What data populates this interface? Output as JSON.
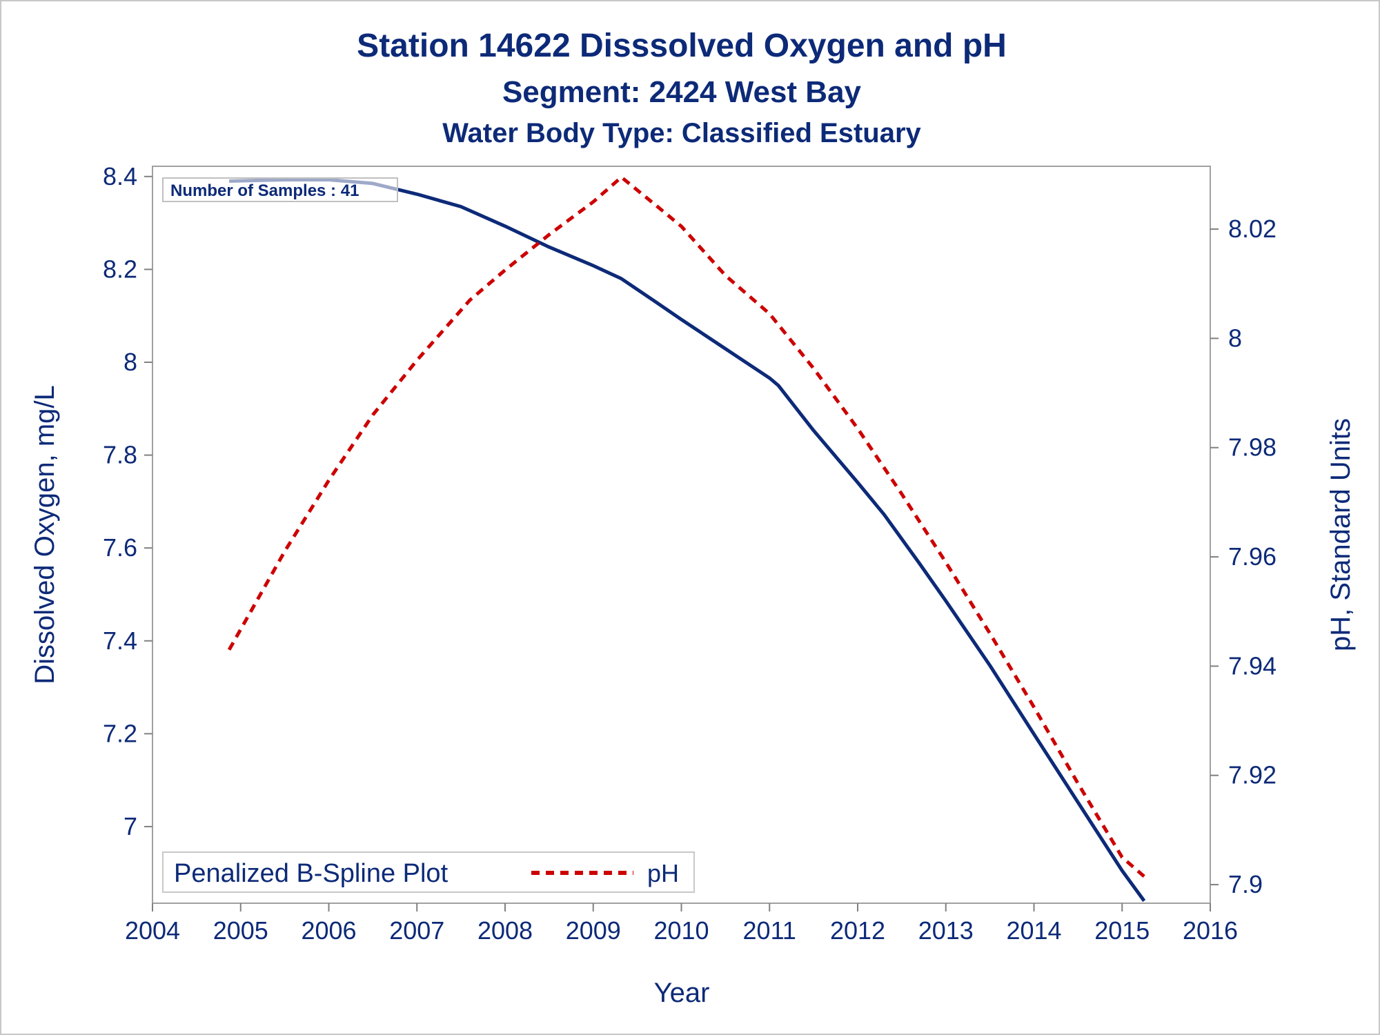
{
  "titles": {
    "line1": "Station 14622   Disssolved Oxygen and pH",
    "line2": "Segment: 2424  West Bay",
    "line3": "Water Body Type: Classified Estuary"
  },
  "inset_label": "Number of Samples : 41",
  "legend": {
    "title": "Penalized B-Spline Plot",
    "entries": [
      {
        "label": "pH",
        "style": "dashed",
        "color": "#cc0000"
      }
    ]
  },
  "colors": {
    "do_line": "#0d2a78",
    "ph_line": "#cc0000",
    "text": "#0d2a78",
    "frame": "#a0a0a0"
  },
  "chart_data": {
    "type": "line",
    "xlabel": "Year",
    "ylabel": "Dissolved Oxygen, mg/L",
    "y2label": "pH, Standard Units",
    "xlim": [
      2004,
      2016
    ],
    "ylim": [
      6.835,
      8.422
    ],
    "y2lim": [
      7.8966,
      8.0315
    ],
    "xticks": [
      "2004",
      "2005",
      "2006",
      "2007",
      "2008",
      "2009",
      "2010",
      "2011",
      "2012",
      "2013",
      "2014",
      "2015",
      "2016"
    ],
    "yticks": [
      "7",
      "7.2",
      "7.4",
      "7.6",
      "7.8",
      "8",
      "8.2",
      "8.4"
    ],
    "y2ticks": [
      "7.9",
      "7.92",
      "7.94",
      "7.96",
      "7.98",
      "8",
      "8.02"
    ],
    "grid": false,
    "legend_position": "bottom-left",
    "series": [
      {
        "axis": "left",
        "style": "solid",
        "x": [
          2004.87,
          2005.5,
          2006.0,
          2006.5,
          2007.0,
          2007.5,
          2008.0,
          2008.5,
          2009.0,
          2009.32,
          2009.7,
          2010.0,
          2010.5,
          2011.0,
          2011.1,
          2011.5,
          2012.0,
          2012.3,
          2012.7,
          2013.0,
          2013.5,
          2014.0,
          2014.5,
          2015.0,
          2015.25
        ],
        "values": [
          8.39,
          8.393,
          8.393,
          8.385,
          8.362,
          8.335,
          8.293,
          8.248,
          8.208,
          8.18,
          8.131,
          8.092,
          8.029,
          7.966,
          7.95,
          7.853,
          7.741,
          7.672,
          7.567,
          7.486,
          7.347,
          7.199,
          7.052,
          6.905,
          6.84
        ]
      },
      {
        "name": "pH",
        "axis": "right",
        "style": "dashed",
        "x": [
          2004.87,
          2005.5,
          2006.0,
          2006.5,
          2007.0,
          2007.6,
          2008.0,
          2008.5,
          2009.0,
          2009.32,
          2009.7,
          2010.0,
          2010.5,
          2011.0,
          2011.5,
          2012.0,
          2012.5,
          2013.0,
          2013.5,
          2014.0,
          2014.5,
          2015.0,
          2015.25
        ],
        "values": [
          7.943,
          7.961,
          7.974,
          7.986,
          7.996,
          8.007,
          8.0125,
          8.019,
          8.025,
          8.0295,
          8.0245,
          8.0205,
          8.0115,
          8.0045,
          7.9945,
          7.9835,
          7.9715,
          7.959,
          7.946,
          7.9325,
          7.9185,
          7.905,
          7.9015
        ]
      }
    ]
  }
}
